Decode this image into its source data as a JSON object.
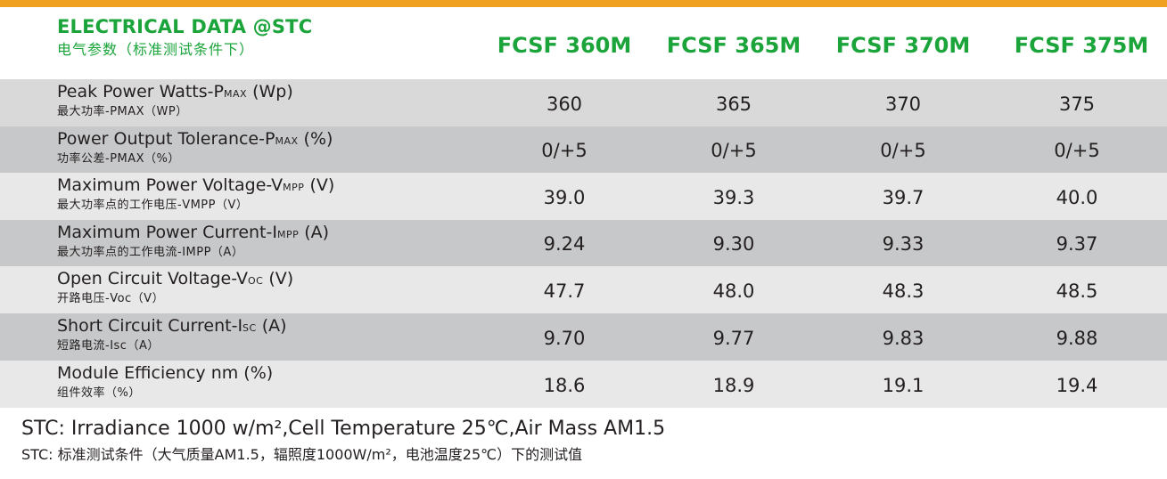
{
  "header": {
    "title_en": "ELECTRICAL DATA @STC",
    "title_cn": "电气参数（标准测试条件下）",
    "models": [
      "FCSF 360M",
      "FCSF 365M",
      "FCSF 370M",
      "FCSF 375M"
    ]
  },
  "colors": {
    "accent_orange": "#f0a11f",
    "title_green": "#1aa43a",
    "row_shade": "#d9d9da"
  },
  "rows": [
    {
      "en_main": "Peak Power Watts-P",
      "en_sub": "MAX",
      "en_unit": " (Wp)",
      "cn": "最大功率-PMAX（WP）",
      "values": [
        "360",
        "365",
        "370",
        "375"
      ]
    },
    {
      "en_main": "Power Output Tolerance-P",
      "en_sub": "MAX",
      "en_unit": " (%)",
      "cn": "功率公差-PMAX（%）",
      "values": [
        "0/+5",
        "0/+5",
        "0/+5",
        "0/+5"
      ]
    },
    {
      "en_main": "Maximum Power Voltage-V",
      "en_sub": "MPP",
      "en_unit": " (V)",
      "cn": "最大功率点的工作电压-VMPP（V）",
      "values": [
        "39.0",
        "39.3",
        "39.7",
        "40.0"
      ]
    },
    {
      "en_main": "Maximum Power Current-I",
      "en_sub": "MPP",
      "en_unit": " (A)",
      "cn": "最大功率点的工作电流-IMPP（A）",
      "values": [
        "9.24",
        "9.30",
        "9.33",
        "9.37"
      ]
    },
    {
      "en_main": "Open Circuit Voltage-V",
      "en_sub": "OC",
      "en_unit": " (V)",
      "cn": "开路电压-Voc（V）",
      "values": [
        "47.7",
        "48.0",
        "48.3",
        "48.5"
      ]
    },
    {
      "en_main": "Short Circuit Current-I",
      "en_sub": "SC",
      "en_unit": " (A)",
      "cn": "短路电流-Isc（A）",
      "values": [
        "9.70",
        "9.77",
        "9.83",
        "9.88"
      ]
    },
    {
      "en_main": "Module Efficiency nm",
      "en_sub": "",
      "en_unit": " (%)",
      "cn": "组件效率（%）",
      "values": [
        "18.6",
        "18.9",
        "19.1",
        "19.4"
      ]
    }
  ],
  "notes": {
    "en": "STC: Irradiance 1000 w/m²,Cell Temperature 25℃,Air Mass AM1.5",
    "cn": "STC: 标准测试条件（大气质量AM1.5，辐照度1000W/m²，电池温度25℃）下的测试值"
  }
}
